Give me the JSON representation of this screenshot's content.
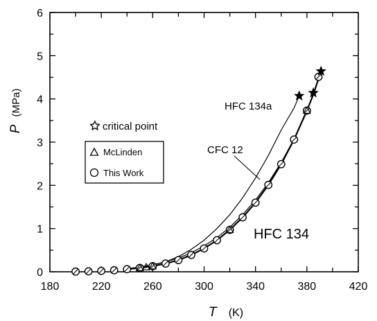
{
  "chart_data": {
    "type": "line",
    "title": "",
    "xlabel": "T",
    "xunit": "(K)",
    "ylabel": "P",
    "yunit": "(MPa)",
    "xlim": [
      180,
      420
    ],
    "ylim": [
      0,
      6
    ],
    "x_ticks": [
      "180",
      "220",
      "260",
      "300",
      "340",
      "380",
      "420"
    ],
    "y_ticks": [
      "0",
      "1",
      "2",
      "3",
      "4",
      "5",
      "6"
    ],
    "grid": false,
    "legend": {
      "items": [
        {
          "marker": "star",
          "label": "critical point"
        },
        {
          "marker": "triangle",
          "label": "McLinden"
        },
        {
          "marker": "circle",
          "label": "This Work"
        }
      ]
    },
    "series": [
      {
        "name": "HFC 134",
        "x": [
          240,
          250,
          260,
          270,
          280,
          290,
          300,
          310,
          320,
          330,
          340,
          350,
          360,
          370,
          380,
          385,
          391
        ],
        "y": [
          0.06,
          0.09,
          0.13,
          0.19,
          0.27,
          0.39,
          0.54,
          0.73,
          0.97,
          1.26,
          1.6,
          2.01,
          2.49,
          3.06,
          3.73,
          4.1,
          4.64
        ]
      },
      {
        "name": "HFC 134a",
        "x": [
          240,
          250,
          260,
          270,
          280,
          290,
          300,
          310,
          320,
          330,
          340,
          350,
          360,
          370,
          374
        ],
        "y": [
          0.06,
          0.1,
          0.16,
          0.23,
          0.35,
          0.52,
          0.73,
          1.0,
          1.32,
          1.71,
          2.17,
          2.69,
          3.28,
          3.79,
          4.07
        ]
      },
      {
        "name": "CFC 12",
        "x": [
          240,
          250,
          260,
          270,
          280,
          290,
          300,
          310,
          320,
          330,
          340,
          350,
          360,
          370,
          380,
          385
        ],
        "y": [
          0.07,
          0.11,
          0.16,
          0.23,
          0.32,
          0.44,
          0.6,
          0.79,
          1.03,
          1.32,
          1.66,
          2.06,
          2.53,
          3.07,
          3.7,
          4.14
        ]
      }
    ],
    "this_work_points": {
      "x": [
        200,
        210,
        220,
        230,
        240,
        250,
        260,
        270,
        280,
        290,
        300,
        310,
        320,
        330,
        340,
        350,
        360,
        370,
        380,
        389
      ],
      "y": [
        0.005,
        0.01,
        0.02,
        0.035,
        0.06,
        0.09,
        0.13,
        0.19,
        0.27,
        0.39,
        0.54,
        0.73,
        0.97,
        1.26,
        1.6,
        2.01,
        2.49,
        3.06,
        3.73,
        4.51
      ]
    },
    "mclinden_points": {
      "x": [
        250,
        255,
        260,
        320,
        380
      ],
      "y": [
        0.09,
        0.11,
        0.13,
        0.97,
        3.73
      ]
    },
    "critical_points": [
      {
        "x": 374,
        "y": 4.07
      },
      {
        "x": 385,
        "y": 4.14
      },
      {
        "x": 391,
        "y": 4.64
      }
    ],
    "annotations": [
      "HFC 134a",
      "CFC 12",
      "HFC 134"
    ]
  }
}
